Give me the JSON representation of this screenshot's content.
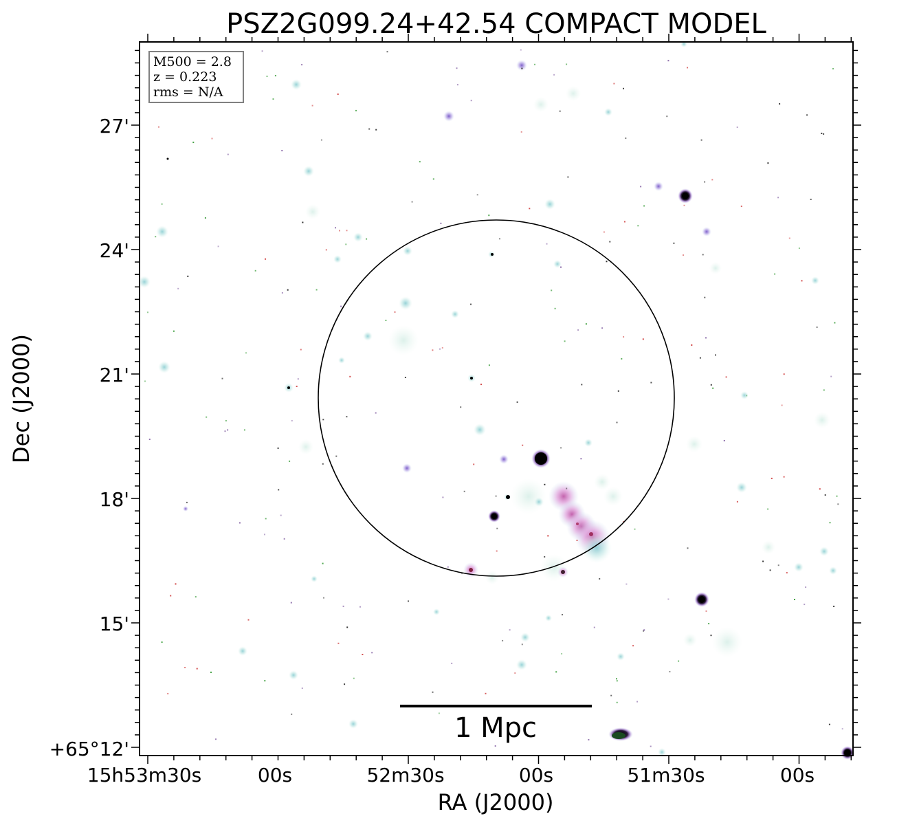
{
  "figure": {
    "title": "PSZ2G099.24+42.54 COMPACT MODEL",
    "xlabel": "RA (J2000)",
    "ylabel": "Dec (J2000)",
    "ra_ticks": [
      "15h53m30s",
      "00s",
      "52m30s",
      "00s",
      "51m30s",
      "00s"
    ],
    "dec_ticks": [
      "27'",
      "24'",
      "21'",
      "18'",
      "15'",
      "+65°12'"
    ]
  },
  "info_box": {
    "line1": "M500 = 2.8",
    "line2": "z = 0.223",
    "line3": "rms = N/A"
  },
  "scale_bar": {
    "label": "1 Mpc"
  },
  "colors": {
    "frame": "#000000",
    "source_cyan": "#bfe6e6",
    "source_purple": "#a78ad8",
    "source_pink": "#e8a6d8",
    "core_dark": "#000000",
    "noise_red": "#d04040",
    "noise_green": "#40a040"
  }
}
